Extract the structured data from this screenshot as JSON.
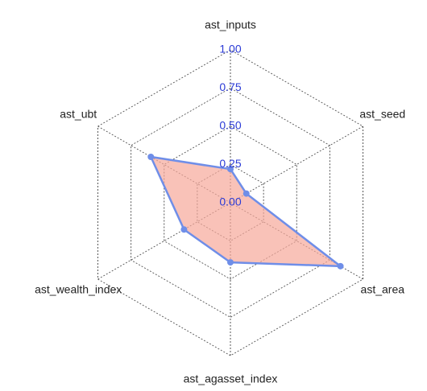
{
  "chart_data": {
    "type": "radar",
    "categories": [
      "ast_inputs",
      "ast_ubt",
      "ast_wealth_index",
      "ast_agasset_index",
      "ast_area",
      "ast_seed"
    ],
    "values": [
      0.22,
      0.6,
      0.35,
      0.39,
      0.83,
      0.12
    ],
    "rlim": [
      0,
      1
    ],
    "rticks": [
      {
        "value": 0,
        "label": "0.00"
      },
      {
        "value": 0.25,
        "label": "0.25"
      },
      {
        "value": 0.5,
        "label": "0.50"
      },
      {
        "value": 0.75,
        "label": "0.75"
      },
      {
        "value": 1,
        "label": "1.00"
      }
    ],
    "color": "#6f8ee8",
    "fill": "#f7a89a",
    "grid": true
  }
}
